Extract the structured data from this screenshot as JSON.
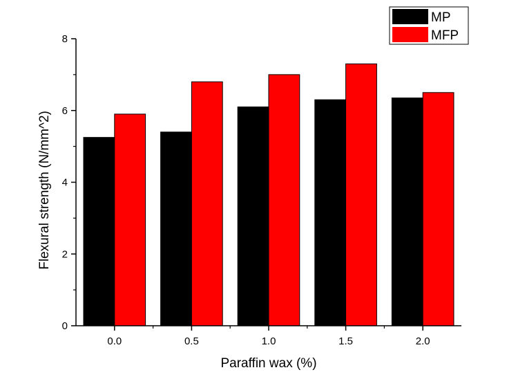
{
  "chart_data": {
    "type": "bar",
    "title": "",
    "xlabel": "Paraffin wax (%)",
    "ylabel": "Flexural strength (N/mm^2)",
    "categories": [
      "0.0",
      "0.5",
      "1.0",
      "1.5",
      "2.0"
    ],
    "ylim": [
      0,
      8
    ],
    "yticks": [
      "0",
      "2",
      "4",
      "6",
      "8"
    ],
    "grid": false,
    "legend_position": "top-right",
    "series": [
      {
        "name": "MP",
        "color": "#000000",
        "values": [
          5.25,
          5.4,
          6.1,
          6.3,
          6.35
        ]
      },
      {
        "name": "MFP",
        "color": "#ff0000",
        "values": [
          5.9,
          6.8,
          7.0,
          7.3,
          6.5
        ]
      }
    ]
  }
}
